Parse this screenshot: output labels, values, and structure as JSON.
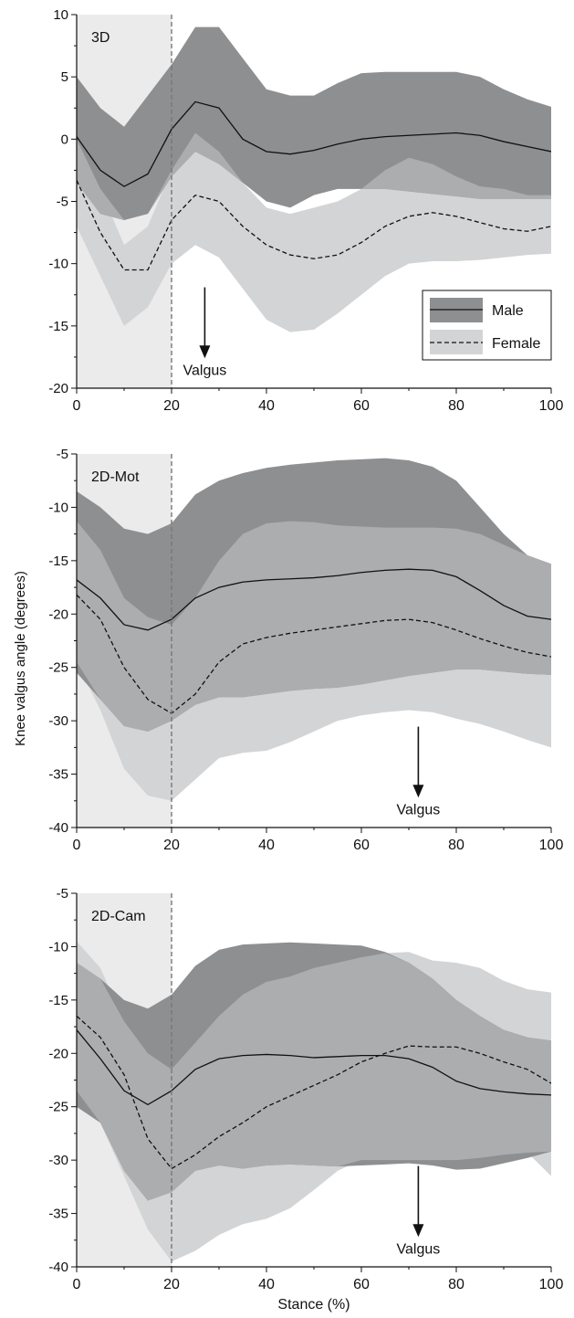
{
  "colors": {
    "male_band": "#8e8f91",
    "female_band": "#d3d4d5",
    "overlap_band": "#acadaf",
    "shade": "#ebebeb",
    "line": "#111111",
    "dashed_ref": "#777777"
  },
  "figure": {
    "ylabel": "Knee valgus angle (degrees)",
    "xlabel": "Stance (%)"
  },
  "legend": {
    "male": "Male",
    "female": "Female"
  },
  "chart_data": [
    {
      "type": "line",
      "panel_label": "3D",
      "annotation": "Valgus",
      "arrow_x": 27,
      "ylim": [
        -20,
        10
      ],
      "yticks": [
        10,
        5,
        0,
        -5,
        -10,
        -15,
        -20
      ],
      "ytick_labels": [
        "10",
        "5",
        "0",
        "-5",
        "-10",
        "-15",
        "-20"
      ],
      "xlim": [
        0,
        100
      ],
      "xticks": [
        0,
        20,
        40,
        60,
        80,
        100
      ],
      "xtick_labels": [
        "0",
        "20",
        "40",
        "60",
        "80",
        "100"
      ],
      "shaded_region": [
        0,
        20
      ],
      "x": [
        0,
        5,
        10,
        15,
        20,
        25,
        30,
        35,
        40,
        45,
        50,
        55,
        60,
        65,
        70,
        75,
        80,
        85,
        90,
        95,
        100
      ],
      "series": [
        {
          "name": "Male",
          "mean": [
            0.2,
            -2.5,
            -3.8,
            -2.8,
            0.8,
            3.0,
            2.5,
            0.0,
            -1.0,
            -1.2,
            -0.9,
            -0.4,
            0.0,
            0.2,
            0.3,
            0.4,
            0.5,
            0.3,
            -0.2,
            -0.6,
            -1.0
          ],
          "upper": [
            5.0,
            2.5,
            1.0,
            3.5,
            6.0,
            9.0,
            9.0,
            6.5,
            4.0,
            3.5,
            3.5,
            4.5,
            5.3,
            5.4,
            5.4,
            5.4,
            5.4,
            5.0,
            4.0,
            3.2,
            2.6
          ],
          "lower": [
            -3.5,
            -6.0,
            -6.5,
            -6.0,
            -3.0,
            -1.0,
            -2.0,
            -3.5,
            -5.0,
            -5.5,
            -4.5,
            -4.0,
            -4.0,
            -4.0,
            -4.2,
            -4.4,
            -4.6,
            -4.8,
            -4.8,
            -4.8,
            -4.8
          ]
        },
        {
          "name": "Female",
          "mean": [
            -3.3,
            -7.5,
            -10.5,
            -10.5,
            -6.5,
            -4.5,
            -5.0,
            -7.0,
            -8.5,
            -9.3,
            -9.6,
            -9.3,
            -8.3,
            -7.0,
            -6.2,
            -5.9,
            -6.2,
            -6.7,
            -7.2,
            -7.4,
            -7.0
          ],
          "upper": [
            0.0,
            -4.0,
            -8.5,
            -7.0,
            -2.5,
            0.5,
            -1.0,
            -3.5,
            -5.5,
            -6.0,
            -5.5,
            -5.0,
            -4.0,
            -2.5,
            -1.5,
            -2.0,
            -3.0,
            -3.8,
            -4.0,
            -4.5,
            -4.5
          ],
          "lower": [
            -7.0,
            -11.0,
            -15.0,
            -13.5,
            -10.0,
            -8.5,
            -9.5,
            -12.0,
            -14.5,
            -15.5,
            -15.3,
            -14.0,
            -12.5,
            -11.0,
            -10.0,
            -9.8,
            -9.8,
            -9.7,
            -9.5,
            -9.3,
            -9.2
          ]
        }
      ]
    },
    {
      "type": "line",
      "panel_label": "2D-Mot",
      "annotation": "Valgus",
      "arrow_x": 72,
      "ylim": [
        -40,
        -5
      ],
      "yticks": [
        -5,
        -10,
        -15,
        -20,
        -25,
        -30,
        -35,
        -40
      ],
      "ytick_labels": [
        "-5",
        "-10",
        "-15",
        "-20",
        "-25",
        "-30",
        "-35",
        "-40"
      ],
      "xlim": [
        0,
        100
      ],
      "xticks": [
        0,
        20,
        40,
        60,
        80,
        100
      ],
      "xtick_labels": [
        "0",
        "20",
        "40",
        "60",
        "80",
        "100"
      ],
      "shaded_region": [
        0,
        20
      ],
      "x": [
        0,
        5,
        10,
        15,
        20,
        25,
        30,
        35,
        40,
        45,
        50,
        55,
        60,
        65,
        70,
        75,
        80,
        85,
        90,
        95,
        100
      ],
      "series": [
        {
          "name": "Male",
          "mean": [
            -16.8,
            -18.5,
            -21.0,
            -21.5,
            -20.5,
            -18.5,
            -17.5,
            -17.0,
            -16.8,
            -16.7,
            -16.6,
            -16.4,
            -16.1,
            -15.9,
            -15.8,
            -15.9,
            -16.5,
            -17.8,
            -19.2,
            -20.2,
            -20.5
          ],
          "upper": [
            -8.5,
            -10.0,
            -12.0,
            -12.5,
            -11.5,
            -8.8,
            -7.5,
            -6.8,
            -6.3,
            -6.0,
            -5.8,
            -5.6,
            -5.5,
            -5.4,
            -5.6,
            -6.2,
            -7.5,
            -10.0,
            -12.5,
            -14.5,
            -15.3
          ],
          "lower": [
            -25.5,
            -28.0,
            -30.5,
            -31.0,
            -30.0,
            -28.5,
            -27.8,
            -27.8,
            -27.5,
            -27.2,
            -27.0,
            -26.9,
            -26.6,
            -26.2,
            -25.8,
            -25.5,
            -25.2,
            -25.2,
            -25.4,
            -25.6,
            -25.7
          ]
        },
        {
          "name": "Female",
          "mean": [
            -18.2,
            -20.5,
            -25.0,
            -28.0,
            -29.3,
            -27.5,
            -24.5,
            -22.8,
            -22.2,
            -21.8,
            -21.5,
            -21.2,
            -20.9,
            -20.6,
            -20.5,
            -20.8,
            -21.5,
            -22.3,
            -23.0,
            -23.6,
            -24.0
          ],
          "upper": [
            -11.3,
            -14.0,
            -18.5,
            -20.3,
            -21.0,
            -18.5,
            -15.0,
            -12.5,
            -11.5,
            -11.3,
            -11.4,
            -11.7,
            -11.8,
            -11.9,
            -11.9,
            -11.9,
            -12.0,
            -12.5,
            -13.5,
            -14.5,
            -15.3
          ],
          "lower": [
            -24.5,
            -29.0,
            -34.5,
            -37.0,
            -37.5,
            -35.5,
            -33.5,
            -33.0,
            -32.8,
            -32.0,
            -31.0,
            -30.0,
            -29.5,
            -29.2,
            -29.0,
            -29.2,
            -29.8,
            -30.3,
            -31.0,
            -31.8,
            -32.5
          ]
        }
      ]
    },
    {
      "type": "line",
      "panel_label": "2D-Cam",
      "annotation": "Valgus",
      "arrow_x": 72,
      "ylim": [
        -40,
        -5
      ],
      "yticks": [
        -5,
        -10,
        -15,
        -20,
        -25,
        -30,
        -35,
        -40
      ],
      "ytick_labels": [
        "-5",
        "-10",
        "-15",
        "-20",
        "-25",
        "-30",
        "-35",
        "-40"
      ],
      "xlim": [
        0,
        100
      ],
      "xticks": [
        0,
        20,
        40,
        60,
        80,
        100
      ],
      "xtick_labels": [
        "0",
        "20",
        "40",
        "60",
        "80",
        "100"
      ],
      "shaded_region": [
        0,
        20
      ],
      "x": [
        0,
        5,
        10,
        15,
        20,
        25,
        30,
        35,
        40,
        45,
        50,
        55,
        60,
        65,
        70,
        75,
        80,
        85,
        90,
        95,
        100
      ],
      "series": [
        {
          "name": "Male",
          "mean": [
            -17.8,
            -20.5,
            -23.5,
            -24.8,
            -23.5,
            -21.5,
            -20.5,
            -20.2,
            -20.1,
            -20.2,
            -20.4,
            -20.3,
            -20.2,
            -20.2,
            -20.5,
            -21.3,
            -22.6,
            -23.3,
            -23.6,
            -23.8,
            -23.9
          ],
          "upper": [
            -11.5,
            -13.0,
            -15.0,
            -15.8,
            -14.5,
            -11.8,
            -10.3,
            -9.8,
            -9.7,
            -9.6,
            -9.7,
            -9.8,
            -9.9,
            -10.5,
            -11.5,
            -13.0,
            -15.0,
            -16.5,
            -17.8,
            -18.5,
            -18.8
          ],
          "lower": [
            -25.0,
            -26.5,
            -31.0,
            -33.8,
            -33.0,
            -31.0,
            -30.5,
            -30.8,
            -30.5,
            -30.4,
            -30.5,
            -30.6,
            -30.5,
            -30.4,
            -30.3,
            -30.5,
            -30.9,
            -30.8,
            -30.3,
            -29.8,
            -29.2
          ]
        },
        {
          "name": "Female",
          "mean": [
            -16.5,
            -18.5,
            -22.0,
            -28.0,
            -30.8,
            -29.5,
            -27.8,
            -26.5,
            -25.0,
            -24.0,
            -23.0,
            -22.0,
            -20.8,
            -20.0,
            -19.3,
            -19.4,
            -19.4,
            -20.0,
            -20.8,
            -21.5,
            -22.8
          ],
          "upper": [
            -9.5,
            -12.0,
            -17.0,
            -20.0,
            -21.5,
            -19.0,
            -16.5,
            -14.5,
            -13.3,
            -12.8,
            -12.0,
            -11.5,
            -11.0,
            -10.6,
            -10.5,
            -11.3,
            -11.5,
            -12.0,
            -13.2,
            -14.0,
            -14.3
          ],
          "lower": [
            -23.5,
            -26.5,
            -31.5,
            -36.5,
            -39.5,
            -38.5,
            -37.0,
            -36.0,
            -35.5,
            -34.5,
            -32.8,
            -31.0,
            -30.0,
            -30.0,
            -30.0,
            -30.0,
            -30.0,
            -29.8,
            -29.5,
            -29.3,
            -31.5
          ]
        }
      ]
    }
  ]
}
